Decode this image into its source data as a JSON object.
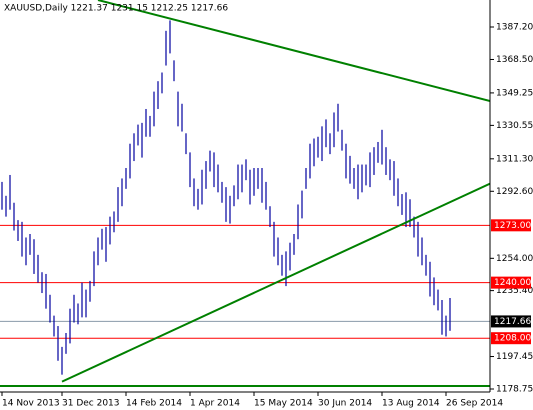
{
  "chart_data": {
    "type": "ohlc",
    "title": "XAUUSD,Daily  1221.37 1231.15 1212.25 1217.66",
    "color": "#0000a0",
    "categories": [
      "14 Nov 2013",
      null,
      null,
      null,
      null,
      null,
      null,
      null,
      null,
      null,
      null,
      null,
      null,
      null,
      null,
      "31 Dec 2013",
      null,
      null,
      null,
      null,
      null,
      null,
      null,
      null,
      null,
      null,
      null,
      null,
      null,
      null,
      null,
      "14 Feb 2014",
      null,
      null,
      null,
      null,
      null,
      null,
      null,
      null,
      null,
      null,
      null,
      null,
      null,
      null,
      null,
      "1 Apr 2014",
      null,
      null,
      null,
      null,
      null,
      null,
      null,
      null,
      null,
      null,
      null,
      null,
      null,
      null,
      null,
      "15 May 2014",
      null,
      null,
      null,
      null,
      null,
      null,
      null,
      null,
      null,
      null,
      null,
      null,
      null,
      null,
      null,
      "30 Jun 2014",
      null,
      null,
      null,
      null,
      null,
      null,
      null,
      null,
      null,
      null,
      null,
      null,
      null,
      null,
      null,
      "13 Aug 2014",
      null,
      null,
      null,
      null,
      null,
      null,
      null,
      null,
      null,
      null,
      null,
      null,
      null,
      null,
      null,
      "26 Sep 2014",
      null
    ],
    "high": [
      1298,
      1290,
      1302,
      1286,
      1276,
      1275,
      1266,
      1268,
      1265,
      1256,
      1246,
      1245,
      1233,
      1221,
      1215,
      1203,
      1211,
      1225,
      1233,
      1228,
      1240,
      1236,
      1241,
      1258,
      1266,
      1271,
      1272,
      1278,
      1281,
      1295,
      1300,
      1306,
      1320,
      1326,
      1331,
      1332,
      1340,
      1336,
      1350,
      1356,
      1361,
      1385,
      1391,
      1368,
      1350,
      1343,
      1326,
      1315,
      1300,
      1294,
      1305,
      1310,
      1316,
      1315,
      1308,
      1298,
      1295,
      1290,
      1296,
      1308,
      1308,
      1311,
      1305,
      1306,
      1306,
      1306,
      1298,
      1284,
      1275,
      1266,
      1256,
      1258,
      1263,
      1268,
      1285,
      1293,
      1306,
      1320,
      1323,
      1324,
      1330,
      1334,
      1326,
      1338,
      1343,
      1328,
      1320,
      1313,
      1306,
      1308,
      1308,
      1308,
      1315,
      1318,
      1321,
      1328,
      1318,
      1311,
      1310,
      1300,
      1291,
      1292,
      1288,
      1278,
      1275,
      1266,
      1256,
      1252,
      1243,
      1236,
      1230,
      1221,
      1231.15
    ],
    "low": [
      1282,
      1278,
      1282,
      1270,
      1264,
      1255,
      1250,
      1256,
      1245,
      1240,
      1234,
      1225,
      1217,
      1209,
      1195,
      1187,
      1199,
      1205,
      1217,
      1216,
      1220,
      1220,
      1229,
      1238,
      1250,
      1259,
      1252,
      1262,
      1269,
      1275,
      1284,
      1294,
      1300,
      1310,
      1319,
      1312,
      1324,
      1324,
      1330,
      1340,
      1349,
      1365,
      1372,
      1356,
      1330,
      1327,
      1314,
      1295,
      1284,
      1282,
      1285,
      1294,
      1304,
      1295,
      1292,
      1286,
      1275,
      1274,
      1284,
      1288,
      1292,
      1299,
      1285,
      1290,
      1294,
      1286,
      1282,
      1272,
      1255,
      1250,
      1244,
      1238,
      1247,
      1256,
      1265,
      1277,
      1294,
      1300,
      1307,
      1312,
      1310,
      1318,
      1314,
      1318,
      1327,
      1316,
      1300,
      1297,
      1294,
      1288,
      1292,
      1296,
      1295,
      1302,
      1309,
      1308,
      1302,
      1299,
      1290,
      1284,
      1279,
      1272,
      1272,
      1266,
      1255,
      1250,
      1244,
      1232,
      1227,
      1224,
      1210,
      1209,
      1212.25
    ],
    "ylim": [
      1177.02,
      1402.75
    ],
    "yticks": [
      {
        "value": 1387.2,
        "label": "1387.20"
      },
      {
        "value": 1368.5,
        "label": "1368.50"
      },
      {
        "value": 1349.25,
        "label": "1349.25"
      },
      {
        "value": 1330.55,
        "label": "1330.55"
      },
      {
        "value": 1311.3,
        "label": "1311.30"
      },
      {
        "value": 1292.6,
        "label": "1292.60"
      },
      {
        "value": 1254,
        "label": "1254.00"
      },
      {
        "value": 1235.4,
        "label": "1235.40"
      },
      {
        "value": 1197.45,
        "label": "1197.45"
      },
      {
        "value": 1178.75,
        "label": "1178.75"
      }
    ],
    "levels": [
      {
        "value": 1273,
        "label": "1273.00",
        "color": "#ff0000"
      },
      {
        "value": 1240,
        "label": "1240.00",
        "color": "#ff0000"
      },
      {
        "value": 1208,
        "label": "1208.00",
        "color": "#ff0000"
      },
      {
        "value": 1217.66,
        "label": "1217.66",
        "color": "#000000"
      },
      {
        "value": 1180.5,
        "color": "#008000"
      }
    ],
    "trend_lines": [
      {
        "color": "#008000",
        "points": [
          [
            24,
            1402.75
          ],
          [
            122,
            1344.6
          ]
        ]
      },
      {
        "color": "#008000",
        "points": [
          [
            15,
            1183
          ],
          [
            122,
            1297
          ]
        ]
      }
    ]
  }
}
